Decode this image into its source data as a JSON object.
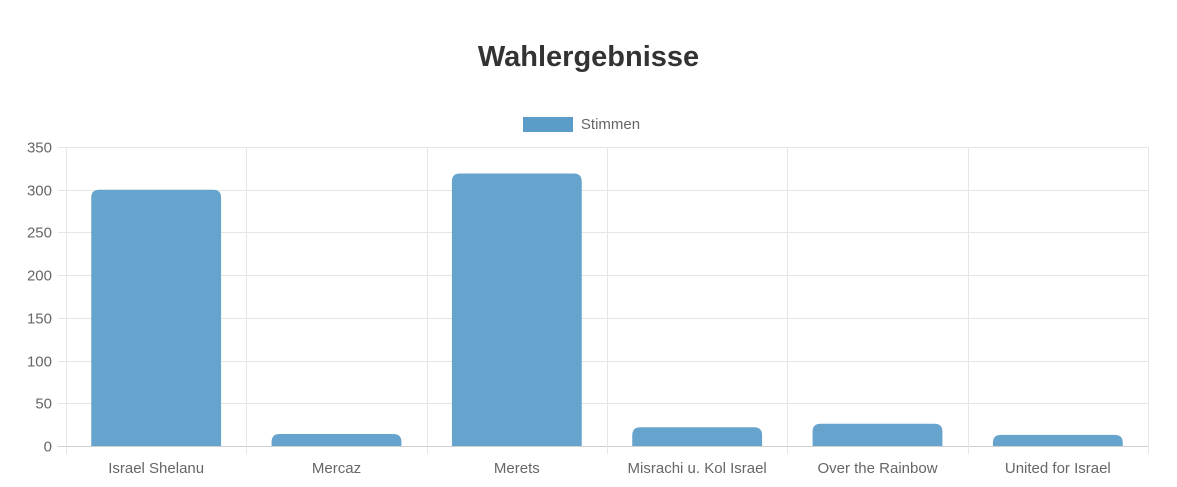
{
  "chart_data": {
    "type": "bar",
    "title": "Wahlergebnisse",
    "categories": [
      "Israel Shelanu",
      "Mercaz",
      "Merets",
      "Misrachi u. Kol Israel",
      "Over the Rainbow",
      "United for Israel"
    ],
    "series": [
      {
        "name": "Stimmen",
        "values": [
          300,
          14,
          319,
          22,
          26,
          13
        ],
        "color": "#5b9dc9"
      }
    ],
    "yticks": [
      0,
      50,
      100,
      150,
      200,
      250,
      300,
      350
    ],
    "ylim": [
      0,
      350
    ],
    "grid": true,
    "legend_position": "top"
  }
}
